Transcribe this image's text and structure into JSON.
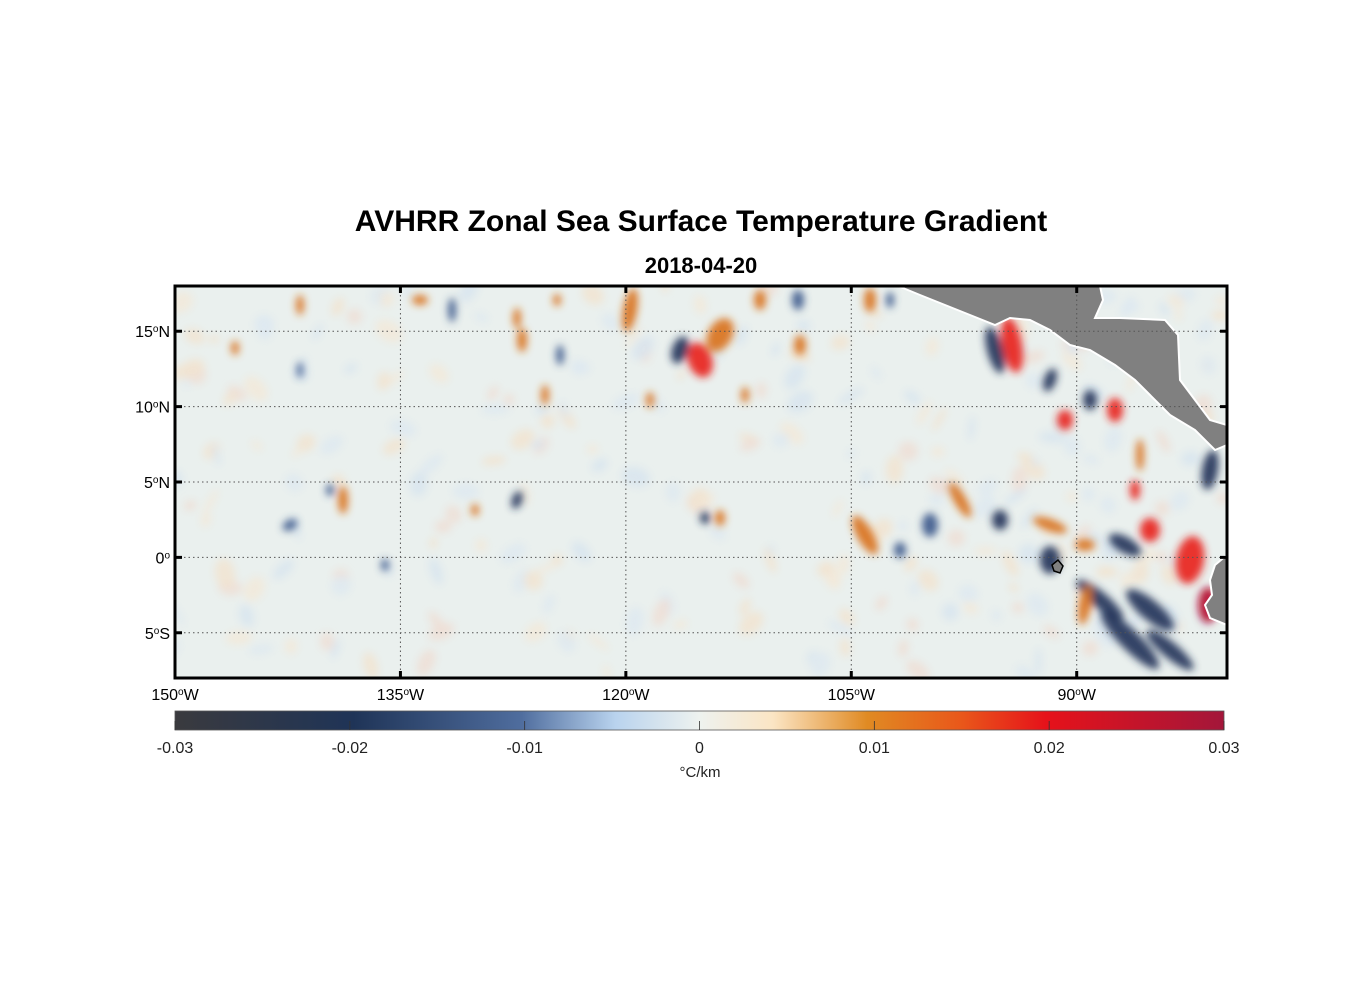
{
  "title": "AVHRR Zonal Sea Surface Temperature Gradient",
  "subtitle": "2018-04-20",
  "colors": {
    "land": "#808080",
    "frame": "#000000",
    "grid": "#555555"
  },
  "map": {
    "lon_ticks": [
      {
        "value": -150,
        "num": "150",
        "hemi": "W"
      },
      {
        "value": -135,
        "num": "135",
        "hemi": "W"
      },
      {
        "value": -120,
        "num": "120",
        "hemi": "W"
      },
      {
        "value": -105,
        "num": "105",
        "hemi": "W"
      },
      {
        "value": -90,
        "num": "90",
        "hemi": "W"
      }
    ],
    "lat_ticks": [
      {
        "value": 15,
        "num": "15",
        "hemi": "N"
      },
      {
        "value": 10,
        "num": "10",
        "hemi": "N"
      },
      {
        "value": 5,
        "num": "5",
        "hemi": "N"
      },
      {
        "value": 0,
        "num": "0",
        "hemi": ""
      },
      {
        "value": -5,
        "num": "5",
        "hemi": "S"
      }
    ],
    "lon_range": [
      -150,
      -80
    ],
    "lat_range": [
      -8,
      18
    ]
  },
  "colorbar": {
    "range": [
      -0.03,
      0.03
    ],
    "ticks": [
      "-0.03",
      "-0.02",
      "-0.01",
      "0",
      "0.01",
      "0.02",
      "0.03"
    ],
    "unit": "°C/km"
  }
}
